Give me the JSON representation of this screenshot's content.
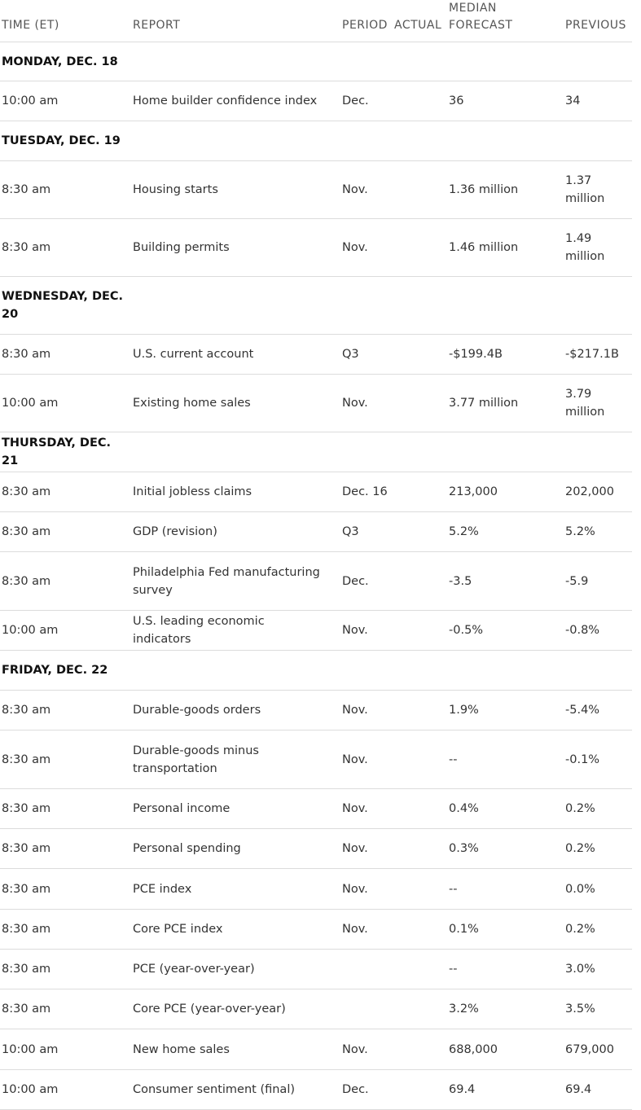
{
  "columns": {
    "time": "TIME (ET)",
    "report": "REPORT",
    "period": "PERIOD",
    "actual": "ACTUAL",
    "forecast_line1": "MEDIAN",
    "forecast_line2": "FORECAST",
    "previous": "PREVIOUS"
  },
  "days": [
    {
      "label": "MONDAY, DEC. 18",
      "rows": [
        {
          "time": "10:00 am",
          "report": "Home builder confidence index",
          "period": "Dec.",
          "actual": "",
          "forecast": "36",
          "previous": "34"
        }
      ]
    },
    {
      "label": "TUESDAY, DEC. 19",
      "rows": [
        {
          "time": "8:30 am",
          "report": "Housing starts",
          "period": "Nov.",
          "actual": "",
          "forecast": "1.36 million",
          "previous": "1.37 million"
        },
        {
          "time": "8:30 am",
          "report": "Building permits",
          "period": "Nov.",
          "actual": "",
          "forecast": "1.46 million",
          "previous": "1.49 million"
        }
      ]
    },
    {
      "label": "WEDNESDAY, DEC. 20",
      "rows": [
        {
          "time": "8:30 am",
          "report": "U.S. current account",
          "period": "Q3",
          "actual": "",
          "forecast": "-$199.4B",
          "previous": "-$217.1B"
        },
        {
          "time": "10:00 am",
          "report": "Existing home sales",
          "period": "Nov.",
          "actual": "",
          "forecast": "3.77 million",
          "previous": "3.79 million"
        }
      ]
    },
    {
      "label": "THURSDAY, DEC. 21",
      "rows": [
        {
          "time": "8:30 am",
          "report": "Initial jobless claims",
          "period": "Dec. 16",
          "actual": "",
          "forecast": "213,000",
          "previous": "202,000"
        },
        {
          "time": "8:30 am",
          "report": "GDP (revision)",
          "period": "Q3",
          "actual": "",
          "forecast": "5.2%",
          "previous": "5.2%"
        },
        {
          "time": "8:30 am",
          "report": "Philadelphia Fed manufacturing survey",
          "period": "Dec.",
          "actual": "",
          "forecast": "-3.5",
          "previous": "-5.9"
        },
        {
          "time": "10:00 am",
          "report": "U.S. leading economic indicators",
          "period": "Nov.",
          "actual": "",
          "forecast": "-0.5%",
          "previous": "-0.8%"
        }
      ]
    },
    {
      "label": "FRIDAY, DEC. 22",
      "rows": [
        {
          "time": "8:30 am",
          "report": "Durable-goods orders",
          "period": "Nov.",
          "actual": "",
          "forecast": "1.9%",
          "previous": "-5.4%"
        },
        {
          "time": "8:30 am",
          "report": "Durable-goods minus transportation",
          "period": "Nov.",
          "actual": "",
          "forecast": "--",
          "previous": "-0.1%"
        },
        {
          "time": "8:30 am",
          "report": "Personal income",
          "period": "Nov.",
          "actual": "",
          "forecast": "0.4%",
          "previous": "0.2%"
        },
        {
          "time": "8:30 am",
          "report": "Personal spending",
          "period": "Nov.",
          "actual": "",
          "forecast": "0.3%",
          "previous": "0.2%"
        },
        {
          "time": "8:30 am",
          "report": "PCE index",
          "period": "Nov.",
          "actual": "",
          "forecast": "--",
          "previous": "0.0%"
        },
        {
          "time": "8:30 am",
          "report": "Core PCE index",
          "period": "Nov.",
          "actual": "",
          "forecast": "0.1%",
          "previous": "0.2%"
        },
        {
          "time": "8:30 am",
          "report": "PCE (year-over-year)",
          "period": "",
          "actual": "",
          "forecast": "--",
          "previous": "3.0%"
        },
        {
          "time": "8:30 am",
          "report": "Core PCE (year-over-year)",
          "period": "",
          "actual": "",
          "forecast": "3.2%",
          "previous": "3.5%"
        },
        {
          "time": "10:00 am",
          "report": "New home sales",
          "period": "Nov.",
          "actual": "",
          "forecast": "688,000",
          "previous": "679,000"
        },
        {
          "time": "10:00 am",
          "report": "Consumer sentiment (final)",
          "period": "Dec.",
          "actual": "",
          "forecast": "69.4",
          "previous": "69.4"
        }
      ]
    }
  ]
}
